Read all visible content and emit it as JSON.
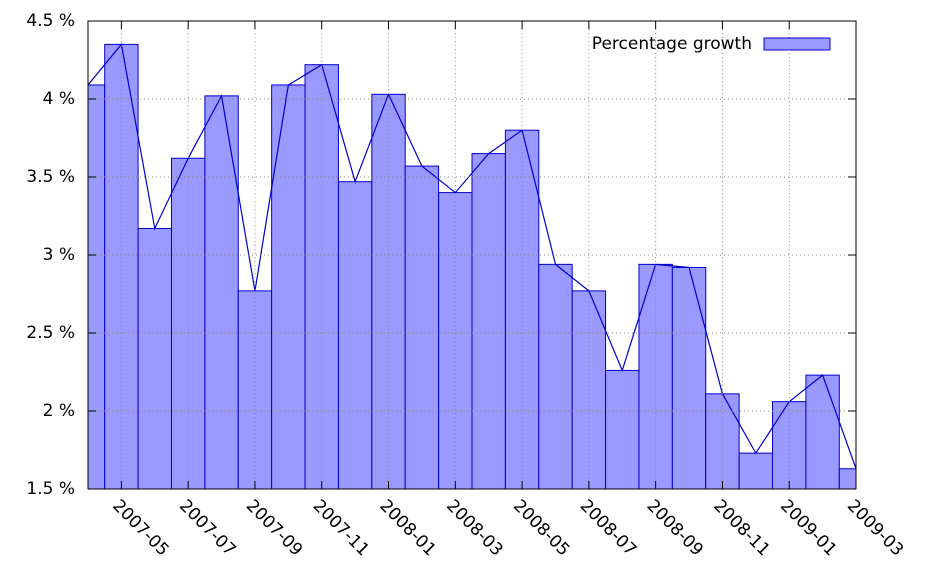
{
  "chart_data": {
    "type": "bar",
    "series": [
      {
        "name": "Percentage growth",
        "color": "#9999ff",
        "edge_color": "#0000cc",
        "values": [
          4.09,
          4.35,
          3.17,
          3.62,
          4.02,
          2.77,
          4.09,
          4.22,
          3.47,
          4.03,
          3.57,
          3.4,
          3.65,
          3.8,
          2.94,
          2.77,
          2.26,
          2.94,
          2.92,
          2.11,
          1.73,
          2.06,
          2.23,
          1.63
        ]
      }
    ],
    "categories": [
      null,
      "2007-05",
      null,
      "2007-07",
      null,
      "2007-09",
      null,
      "2007-11",
      null,
      "2008-01",
      null,
      "2008-03",
      null,
      "2008-05",
      null,
      "2008-07",
      null,
      "2008-09",
      null,
      "2008-11",
      null,
      "2009-01",
      null,
      "2009-03"
    ],
    "ylim": [
      1.5,
      4.5
    ],
    "yticks": [
      {
        "value": 1.5,
        "label": "1.5 %"
      },
      {
        "value": 2,
        "label": "2 %"
      },
      {
        "value": 2.5,
        "label": "2.5 %"
      },
      {
        "value": 3,
        "label": "3 %"
      },
      {
        "value": 3.5,
        "label": "3.5 %"
      },
      {
        "value": 4,
        "label": "4 %"
      },
      {
        "value": 4.5,
        "label": "4.5 %"
      }
    ],
    "grid": true,
    "legend": "top-right",
    "line_overlay": true
  }
}
